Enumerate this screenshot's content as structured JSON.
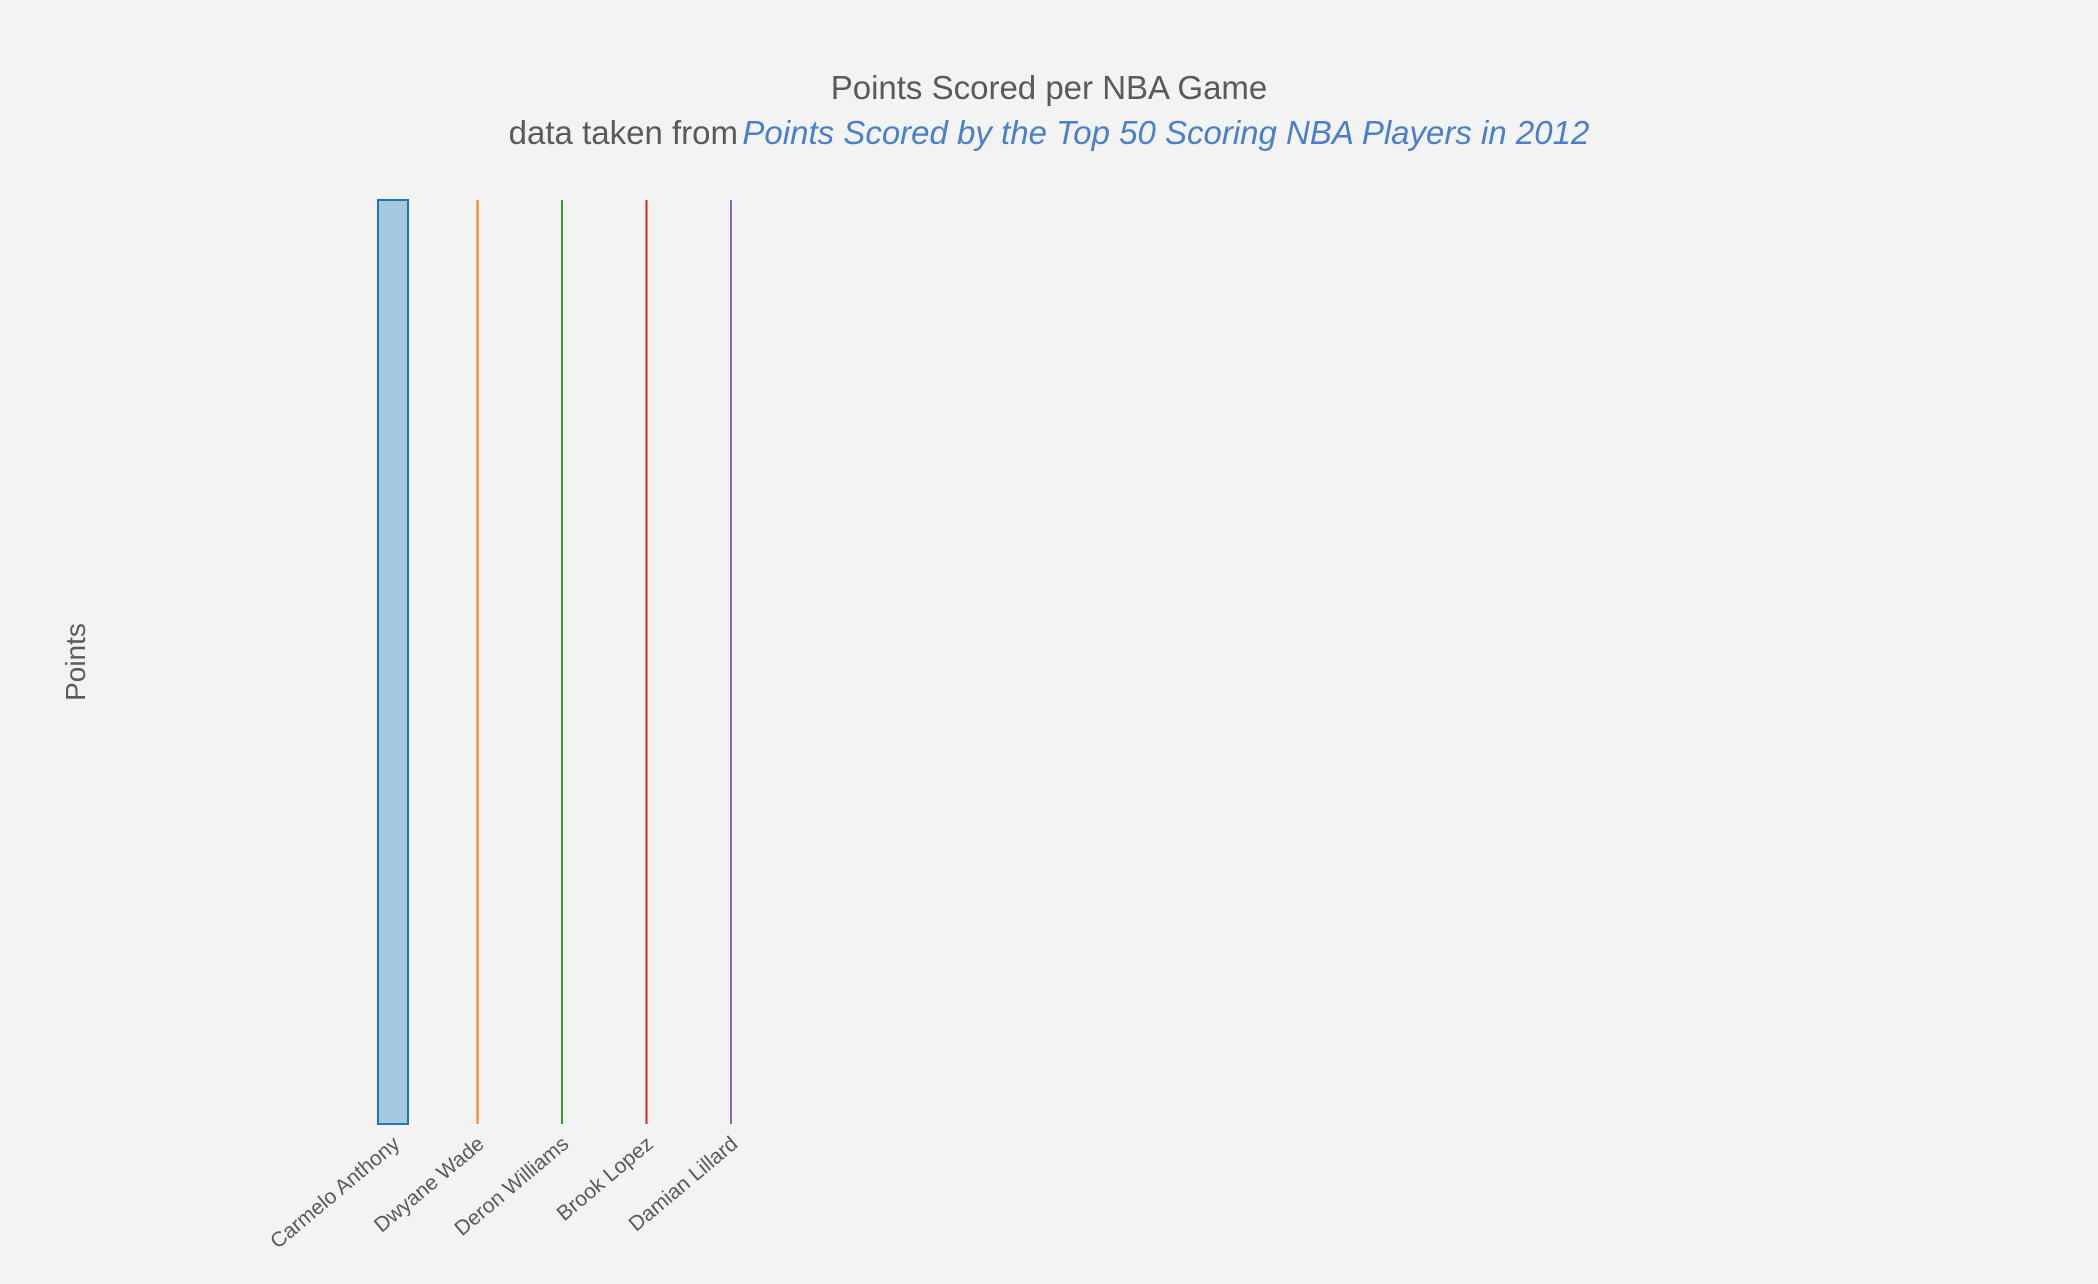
{
  "chart_data": {
    "type": "box",
    "title": "Points Scored per NBA Game",
    "subtitle_prefix": "data taken from",
    "subtitle_link": "Points Scored by the Top 50 Scoring NBA Players in 2012",
    "ylabel": "Points",
    "xlabel": "",
    "categories": [
      "Carmelo Anthony",
      "Dwyane Wade",
      "Deron Williams",
      "Brook Lopez",
      "Damian Lillard"
    ],
    "grid": false,
    "legend": "none",
    "colors": [
      "#1f77b4",
      "#ff7f0e",
      "#2ca02c",
      "#d62728",
      "#9467bd"
    ],
    "fill_color": "#a6c9e2"
  }
}
